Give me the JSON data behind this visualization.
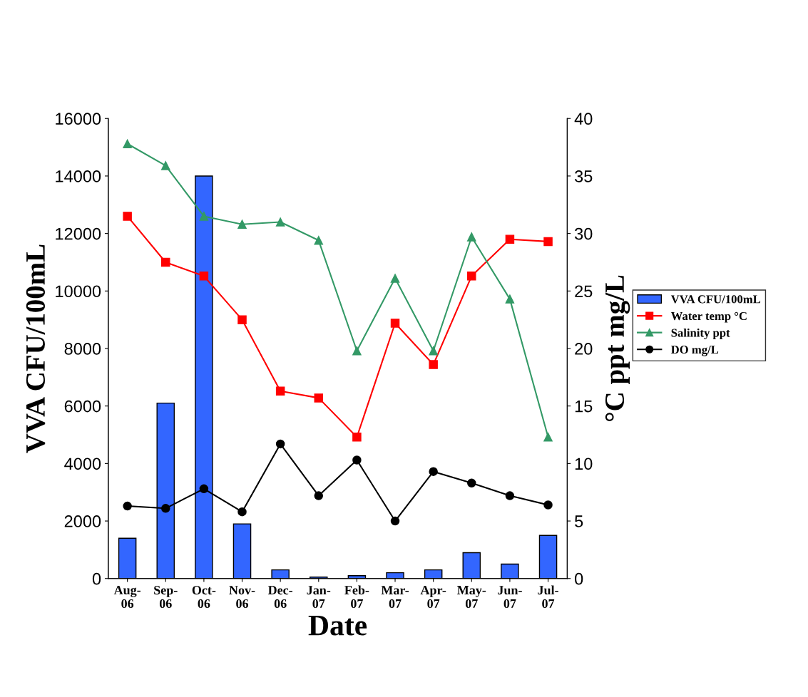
{
  "chart_data": {
    "type": "bar",
    "xlabel": "Date",
    "ylabel": "VVA CFU/100mL",
    "y2label": "°C ppt mg/L",
    "categories": [
      "Aug-\n06",
      "Sep-\n06",
      "Oct-\n06",
      "Nov-\n06",
      "Dec-\n06",
      "Jan-\n07",
      "Feb-\n07",
      "Mar-\n07",
      "Apr-\n07",
      "May-\n07",
      "Jun-\n07",
      "Jul-\n07"
    ],
    "series": [
      {
        "name": "VVA CFU/100mL",
        "color": "#3366ff",
        "values": [
          1400,
          6100,
          14000,
          1900,
          300,
          50,
          100,
          200,
          300,
          900,
          500,
          1500
        ]
      },
      {
        "name": "Water temp °C",
        "type": "line",
        "axis": "y2",
        "marker": "square",
        "color": "#ff0000",
        "values": [
          31.5,
          27.5,
          26.3,
          22.5,
          16.3,
          15.7,
          12.3,
          22.2,
          18.6,
          26.3,
          29.5,
          29.3
        ]
      },
      {
        "name": "Salinity ppt",
        "type": "line",
        "axis": "y2",
        "marker": "triangle",
        "color": "#339966",
        "values": [
          37.8,
          35.9,
          31.5,
          30.8,
          31.0,
          29.4,
          19.8,
          26.1,
          19.8,
          29.7,
          24.3,
          12.3
        ]
      },
      {
        "name": "DO mg/L",
        "type": "line",
        "axis": "y2",
        "marker": "circle",
        "color": "#000000",
        "values": [
          6.3,
          6.1,
          7.8,
          5.8,
          11.7,
          7.2,
          10.3,
          5.0,
          9.3,
          8.3,
          7.2,
          6.4
        ]
      }
    ],
    "ylim": [
      0,
      16000
    ],
    "yticks": [
      0,
      2000,
      4000,
      6000,
      8000,
      10000,
      12000,
      14000,
      16000
    ],
    "y2lim": [
      0,
      40
    ],
    "y2ticks": [
      0,
      5,
      10,
      15,
      20,
      25,
      30,
      35,
      40
    ],
    "grid": false,
    "legend": "right"
  }
}
